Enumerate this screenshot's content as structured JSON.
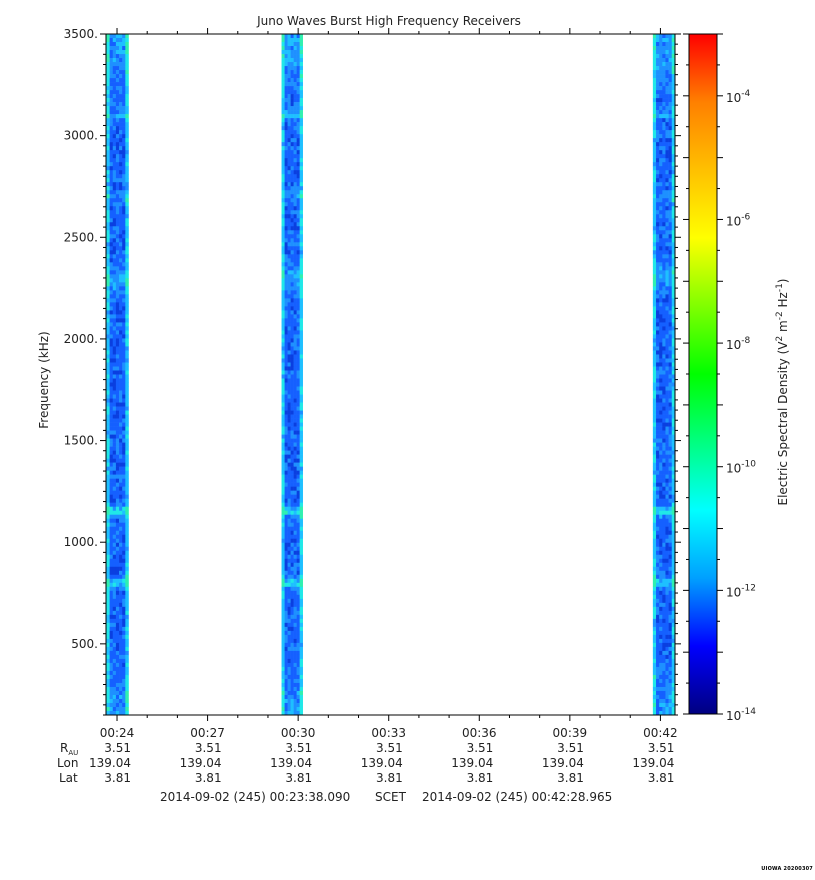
{
  "chart_data": {
    "type": "heatmap",
    "title": "Juno Waves Burst High Frequency Receivers",
    "ylabel": "Frequency (kHz)",
    "ylim": [
      150,
      3500
    ],
    "y_ticks": [
      "500.",
      "1000.",
      "1500.",
      "2000.",
      "2500.",
      "3000.",
      "3500."
    ],
    "y_tick_values": [
      500,
      1000,
      1500,
      2000,
      2500,
      3000,
      3500
    ],
    "x_ticks": [
      "00:24",
      "00:27",
      "00:30",
      "00:33",
      "00:36",
      "00:39",
      "00:42"
    ],
    "x_tick_minutes": [
      24,
      27,
      30,
      33,
      36,
      39,
      42
    ],
    "xlim_minutes": [
      23.635,
      42.483
    ],
    "bursts": [
      {
        "start_minute": 23.65,
        "end_minute": 24.38
      },
      {
        "start_minute": 29.45,
        "end_minute": 30.15
      },
      {
        "start_minute": 41.75,
        "end_minute": 42.48
      }
    ],
    "bright_bands_khz": [
      1150,
      800,
      2300,
      3100,
      2700
    ],
    "colorbar": {
      "label": "Electric Spectral Density (V",
      "label_sup1": "2",
      "label_mid": " m",
      "label_sup2": "-2",
      "label_mid2": " Hz",
      "label_sup3": "-1",
      "label_end": ")",
      "base": "10",
      "exponents": [
        "-14",
        "-12",
        "-10",
        "-8",
        "-6",
        "-4"
      ],
      "log_range": [
        -14,
        -3
      ],
      "colors": [
        "#000080",
        "#0000ff",
        "#00a0ff",
        "#00ffff",
        "#00ff80",
        "#00ff00",
        "#80ff00",
        "#ffff00",
        "#ffc000",
        "#ff8000",
        "#ff0000"
      ]
    },
    "ephemeris": {
      "labels": {
        "rau": "R",
        "rau_sub": "AU",
        "lon": "Lon",
        "lat": "Lat"
      },
      "rau": [
        "3.51",
        "3.51",
        "3.51",
        "3.51",
        "3.51",
        "3.51",
        "3.51"
      ],
      "lon": [
        "139.04",
        "139.04",
        "139.04",
        "139.04",
        "139.04",
        "139.04",
        "139.04"
      ],
      "lat": [
        "3.81",
        "3.81",
        "3.81",
        "3.81",
        "3.81",
        "3.81",
        "3.81"
      ]
    },
    "time_range": {
      "start": "2014-09-02 (245) 00:23:38.090",
      "middle": "SCET",
      "end": "2014-09-02 (245) 00:42:28.965"
    }
  },
  "footer": {
    "credit": "UIOWA 20200307"
  }
}
